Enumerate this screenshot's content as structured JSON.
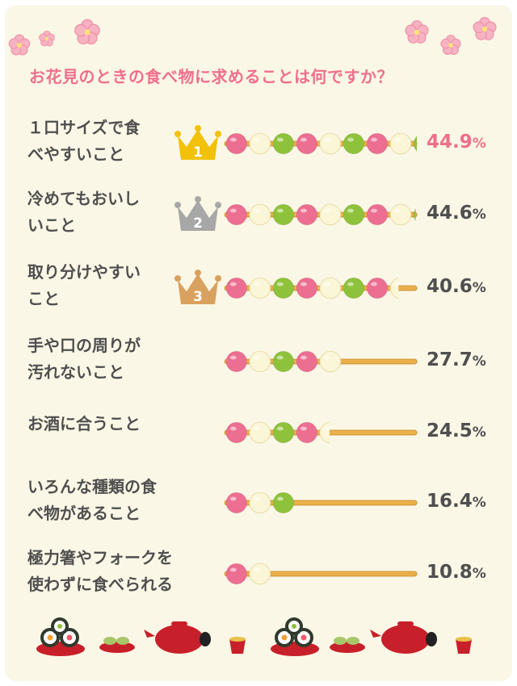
{
  "title": "お花見のときの食べ物に求めることは何ですか？",
  "colors": {
    "title": "#ef6f8d",
    "pink": "#ec6e91",
    "white": "#fcf6d8",
    "green": "#8ec23b",
    "stick": "#eab04a",
    "gold": "#f2c10a",
    "silver": "#a7a7a7",
    "bronze": "#d9a15f"
  },
  "chart_data": {
    "type": "bar",
    "title": "お花見のときの食べ物に求めることは何ですか？",
    "unit": "%",
    "categories": [
      "１口サイズで食べやすいこと",
      "冷めてもおいしいこと",
      "取り分けやすいこと",
      "手や口の周りが汚れないこと",
      "お酒に合うこと",
      "いろんな種類の食べ物があること",
      "極力箸やフォークを使わずに食べられる"
    ],
    "values": [
      44.9,
      44.6,
      40.6,
      27.7,
      24.5,
      16.4,
      10.8
    ],
    "value_labels": [
      "44.9",
      "44.6",
      "40.6",
      "27.7",
      "24.5",
      "16.4",
      "10.8"
    ],
    "ranks": [
      "1",
      "2",
      "3"
    ],
    "xlim": [
      0,
      44.9
    ],
    "axes": false,
    "grid": false,
    "legend": "none",
    "mark_style": "dango skewer: pink, white, green balls repeating"
  }
}
